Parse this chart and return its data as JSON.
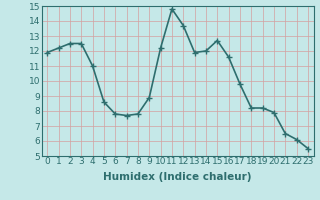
{
  "x": [
    0,
    1,
    2,
    3,
    4,
    5,
    6,
    7,
    8,
    9,
    10,
    11,
    12,
    13,
    14,
    15,
    16,
    17,
    18,
    19,
    20,
    21,
    22,
    23
  ],
  "y": [
    11.9,
    12.2,
    12.5,
    12.5,
    11.0,
    8.6,
    7.8,
    7.7,
    7.8,
    8.9,
    12.2,
    14.8,
    13.7,
    11.9,
    12.0,
    12.7,
    11.6,
    9.8,
    8.2,
    8.2,
    7.9,
    6.5,
    6.1,
    5.5
  ],
  "line_color": "#2e6e6e",
  "marker": "+",
  "marker_size": 4,
  "bg_color": "#c5e8e8",
  "grid_color": "#b0d4d4",
  "xlabel": "Humidex (Indice chaleur)",
  "xlim": [
    -0.5,
    23.5
  ],
  "ylim": [
    5,
    15
  ],
  "yticks": [
    5,
    6,
    7,
    8,
    9,
    10,
    11,
    12,
    13,
    14,
    15
  ],
  "xticks": [
    0,
    1,
    2,
    3,
    4,
    5,
    6,
    7,
    8,
    9,
    10,
    11,
    12,
    13,
    14,
    15,
    16,
    17,
    18,
    19,
    20,
    21,
    22,
    23
  ],
  "xlabel_fontsize": 7.5,
  "tick_fontsize": 6.5,
  "line_width": 1.2
}
